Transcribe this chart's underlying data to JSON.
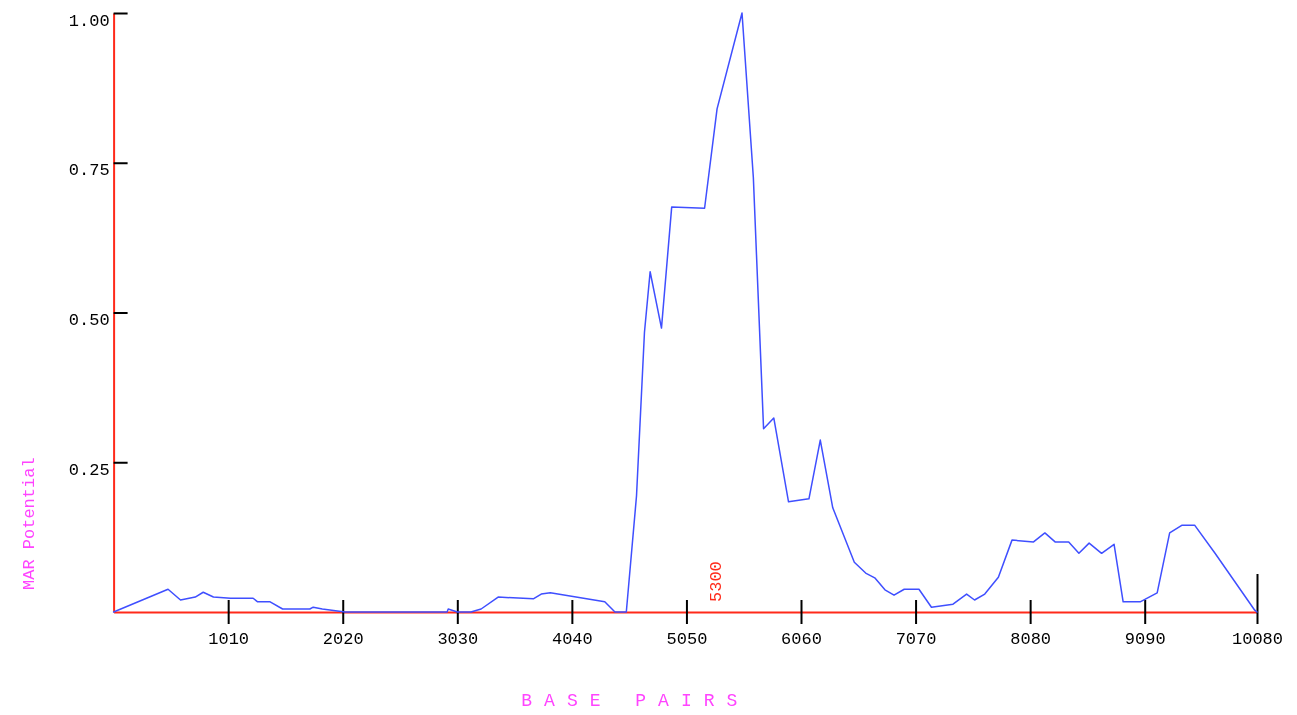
{
  "chart_data": {
    "type": "line",
    "xlabel": "BASE PAIRS",
    "ylabel": "MAR Potential",
    "xlim": [
      0,
      10080
    ],
    "ylim": [
      0,
      1
    ],
    "xticks": [
      1010,
      2020,
      3030,
      4040,
      5050,
      6060,
      7070,
      8080,
      9090,
      10080
    ],
    "yticks": [
      {
        "value": 0.25,
        "label": "0.25"
      },
      {
        "value": 0.5,
        "label": "0.50"
      },
      {
        "value": 0.75,
        "label": "0.75"
      },
      {
        "value": 1,
        "label": "1.00"
      }
    ],
    "grid": false,
    "marker": "none",
    "line_style": "solid",
    "annotations": [
      "5300"
    ],
    "series": [
      {
        "color": "#3f4fff",
        "x": [
          0,
          480,
          590,
          720,
          790,
          880,
          1030,
          1230,
          1270,
          1380,
          1490,
          1730,
          1760,
          1840,
          2040,
          2940,
          2950,
          3030,
          3150,
          3240,
          3390,
          3700,
          3770,
          3850,
          4330,
          4420,
          4520,
          4610,
          4680,
          4730,
          4830,
          4920,
          5210,
          5320,
          5540,
          5640,
          5730,
          5820,
          5950,
          6130,
          6230,
          6340,
          6530,
          6630,
          6710,
          6800,
          6880,
          6970,
          7100,
          7210,
          7400,
          7520,
          7590,
          7680,
          7800,
          7920,
          8110,
          8210,
          8300,
          8420,
          8510,
          8600,
          8710,
          8820,
          8900,
          9050,
          9200,
          9310,
          9420,
          9530,
          9710,
          10060,
          10080
        ],
        "values": [
          0,
          0.038,
          0.02,
          0.025,
          0.033,
          0.025,
          0.023,
          0.023,
          0.017,
          0.017,
          0.005,
          0.005,
          0.008,
          0.005,
          0,
          0,
          0.005,
          0,
          0,
          0.005,
          0.025,
          0.022,
          0.03,
          0.032,
          0.017,
          0,
          0,
          0.194,
          0.467,
          0.568,
          0.474,
          0.676,
          0.674,
          0.84,
          1.0,
          0.725,
          0.306,
          0.324,
          0.184,
          0.189,
          0.287,
          0.174,
          0.083,
          0.065,
          0.057,
          0.037,
          0.028,
          0.038,
          0.038,
          0.008,
          0.013,
          0.03,
          0.02,
          0.03,
          0.058,
          0.12,
          0.117,
          0.132,
          0.117,
          0.117,
          0.098,
          0.115,
          0.098,
          0.113,
          0.017,
          0.017,
          0.032,
          0.132,
          0.145,
          0.145,
          0.098,
          0.003,
          0
        ]
      }
    ]
  }
}
